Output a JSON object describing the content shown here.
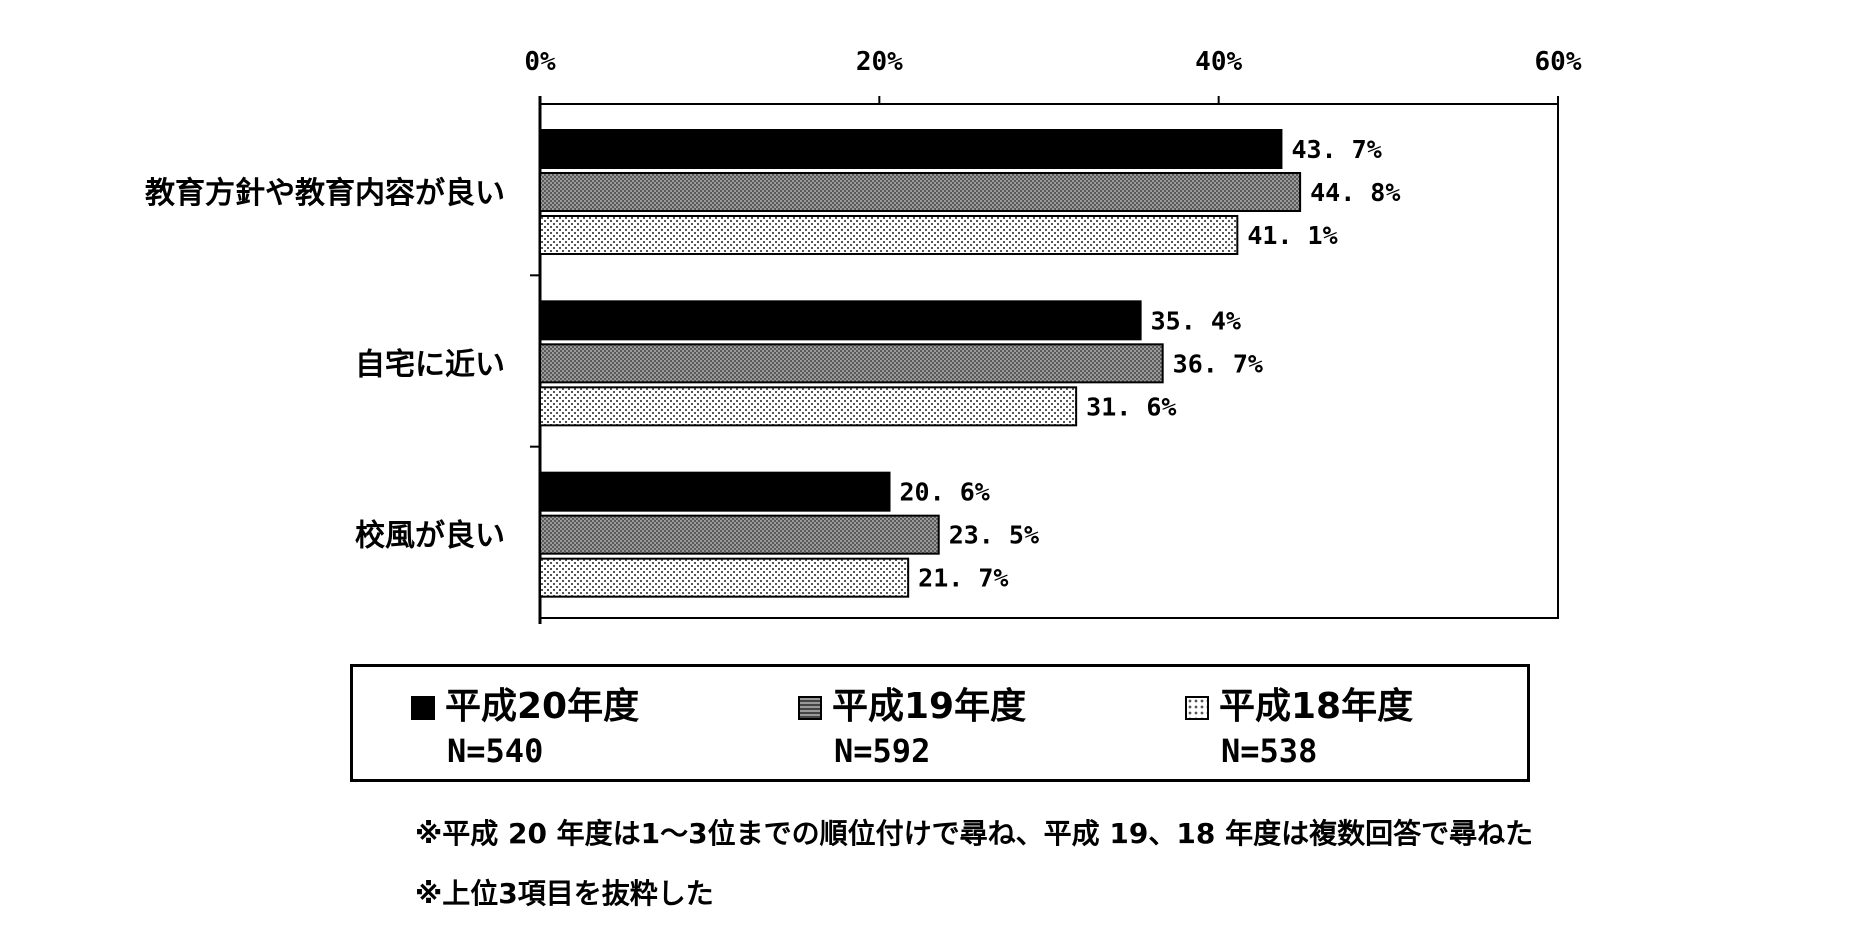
{
  "chart_data": {
    "type": "bar",
    "orientation": "horizontal",
    "categories": [
      "教育方針や教育内容が良い",
      "自宅に近い",
      "校風が良い"
    ],
    "series": [
      {
        "name": "平成20年度",
        "n_label": "N=540",
        "values": [
          43.7,
          35.4,
          20.6
        ],
        "pattern": "solid",
        "color": "#000000"
      },
      {
        "name": "平成19年度",
        "n_label": "N=592",
        "values": [
          44.8,
          36.7,
          23.5
        ],
        "pattern": "dense",
        "color": "#707070"
      },
      {
        "name": "平成18年度",
        "n_label": "N=538",
        "values": [
          41.1,
          31.6,
          21.7
        ],
        "pattern": "dots",
        "color": "#d8d8d8"
      }
    ],
    "value_labels": [
      [
        "43. 7%",
        "35. 4%",
        "20. 6%"
      ],
      [
        "44. 8%",
        "36. 7%",
        "23. 5%"
      ],
      [
        "41. 1%",
        "31. 6%",
        "21. 7%"
      ]
    ],
    "xlim": [
      0,
      60
    ],
    "ticks": [
      0,
      20,
      40,
      60
    ],
    "tick_labels": [
      "0%",
      "20%",
      "40%",
      "60%"
    ],
    "xaxis_position": "top",
    "grid": false,
    "legend_position": "bottom"
  },
  "notes": [
    "※平成 20 年度は1～3位までの順位付けで尋ね、平成 19、18 年度は複数回答で尋ねた",
    "※上位3項目を抜粋した"
  ]
}
